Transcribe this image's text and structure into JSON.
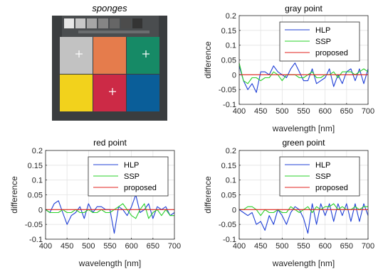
{
  "image_panel": {
    "title": "sponges",
    "colors": [
      "#c2c2c2",
      "#e57c4c",
      "#168a66",
      "#f2d21c",
      "#cc2a46",
      "#0a5e99"
    ],
    "markers": [
      0,
      4,
      2
    ]
  },
  "chart_data": [
    {
      "type": "line",
      "title": "gray point",
      "xlabel": "wavelength [nm]",
      "ylabel": "difference",
      "xlim": [
        400,
        700
      ],
      "ylim": [
        -0.1,
        0.2
      ],
      "xticks": [
        400,
        450,
        500,
        550,
        600,
        650,
        700
      ],
      "yticks": [
        -0.1,
        -0.05,
        0,
        0.05,
        0.1,
        0.15,
        0.2
      ],
      "grid": true,
      "legend": "top-right",
      "x": [
        400,
        410,
        420,
        430,
        440,
        450,
        460,
        470,
        480,
        490,
        500,
        510,
        520,
        530,
        540,
        550,
        560,
        570,
        580,
        590,
        600,
        610,
        620,
        630,
        640,
        650,
        660,
        670,
        680,
        690,
        700
      ],
      "series": [
        {
          "name": "HLP",
          "color": "#1f3fd6",
          "values": [
            0.03,
            -0.02,
            -0.05,
            -0.03,
            -0.06,
            0.01,
            0.01,
            0.0,
            0.03,
            0.01,
            0.0,
            -0.01,
            0.02,
            0.04,
            0.01,
            -0.02,
            -0.02,
            0.02,
            -0.03,
            -0.02,
            -0.01,
            0.02,
            -0.04,
            0.0,
            -0.03,
            0.01,
            0.02,
            -0.02,
            0.02,
            -0.03,
            0.02
          ]
        },
        {
          "name": "SSP",
          "color": "#2ad12a",
          "values": [
            0.04,
            -0.02,
            -0.03,
            -0.01,
            -0.01,
            -0.02,
            -0.01,
            -0.01,
            0.01,
            0.0,
            -0.02,
            0.0,
            0.0,
            0.0,
            -0.01,
            -0.01,
            0.0,
            0.01,
            -0.01,
            -0.01,
            0.0,
            0.0,
            0.01,
            -0.01,
            0.01,
            0.01,
            0.01,
            0.0,
            0.01,
            0.02,
            0.01
          ]
        },
        {
          "name": "proposed",
          "color": "#e0221c",
          "values": [
            0.0,
            0.0,
            0.0,
            0.0,
            0.0,
            0.0,
            0.0,
            0.0,
            0.0,
            0.0,
            0.0,
            0.0,
            0.0,
            0.0,
            0.0,
            0.0,
            0.0,
            0.0,
            0.0,
            0.0,
            0.0,
            0.0,
            0.0,
            0.0,
            0.0,
            0.0,
            0.0,
            0.0,
            0.0,
            0.0,
            0.0
          ]
        }
      ]
    },
    {
      "type": "line",
      "title": "red point",
      "xlabel": "wavelength [nm]",
      "ylabel": "difference",
      "xlim": [
        400,
        700
      ],
      "ylim": [
        -0.1,
        0.2
      ],
      "xticks": [
        400,
        450,
        500,
        550,
        600,
        650,
        700
      ],
      "yticks": [
        -0.1,
        -0.05,
        0,
        0.05,
        0.1,
        0.15,
        0.2
      ],
      "grid": true,
      "legend": "top-right",
      "x": [
        400,
        410,
        420,
        430,
        440,
        450,
        460,
        470,
        480,
        490,
        500,
        510,
        520,
        530,
        540,
        550,
        560,
        570,
        580,
        590,
        600,
        610,
        620,
        630,
        640,
        650,
        660,
        670,
        680,
        690,
        700
      ],
      "series": [
        {
          "name": "HLP",
          "color": "#1f3fd6",
          "values": [
            0.0,
            -0.01,
            0.02,
            0.03,
            -0.01,
            -0.05,
            -0.02,
            -0.01,
            0.01,
            -0.03,
            0.02,
            -0.01,
            0.01,
            0.01,
            0.0,
            0.0,
            -0.08,
            0.01,
            0.0,
            -0.02,
            0.01,
            0.05,
            -0.01,
            0.0,
            0.02,
            -0.03,
            0.01,
            0.0,
            0.01,
            -0.02,
            -0.01
          ]
        },
        {
          "name": "SSP",
          "color": "#2ad12a",
          "values": [
            0.0,
            -0.01,
            -0.01,
            -0.01,
            0.0,
            -0.01,
            -0.01,
            0.0,
            -0.01,
            -0.01,
            0.0,
            -0.01,
            -0.01,
            0.0,
            -0.01,
            -0.01,
            0.0,
            0.01,
            0.02,
            0.0,
            -0.02,
            -0.03,
            0.0,
            0.02,
            -0.03,
            -0.01,
            0.0,
            -0.02,
            0.0,
            -0.02,
            -0.02
          ]
        },
        {
          "name": "proposed",
          "color": "#e0221c",
          "values": [
            0.0,
            0.0,
            0.0,
            0.0,
            0.0,
            0.0,
            0.0,
            0.0,
            0.0,
            0.0,
            0.0,
            0.0,
            0.0,
            0.0,
            0.0,
            0.0,
            0.0,
            0.0,
            0.0,
            0.0,
            0.0,
            0.0,
            0.0,
            0.0,
            0.0,
            0.0,
            0.0,
            0.0,
            0.0,
            0.0,
            0.0
          ]
        }
      ]
    },
    {
      "type": "line",
      "title": "green point",
      "xlabel": "wavelength [nm]",
      "ylabel": "difference",
      "xlim": [
        400,
        700
      ],
      "ylim": [
        -0.1,
        0.2
      ],
      "xticks": [
        400,
        450,
        500,
        550,
        600,
        650,
        700
      ],
      "yticks": [
        -0.1,
        -0.05,
        0,
        0.05,
        0.1,
        0.15,
        0.2
      ],
      "grid": true,
      "legend": "top-right",
      "x": [
        400,
        410,
        420,
        430,
        440,
        450,
        460,
        470,
        480,
        490,
        500,
        510,
        520,
        530,
        540,
        550,
        560,
        570,
        580,
        590,
        600,
        610,
        620,
        630,
        640,
        650,
        660,
        670,
        680,
        690,
        700
      ],
      "series": [
        {
          "name": "HLP",
          "color": "#1f3fd6",
          "values": [
            0.0,
            -0.01,
            -0.02,
            -0.01,
            -0.05,
            -0.04,
            -0.07,
            -0.02,
            -0.05,
            0.0,
            -0.02,
            -0.05,
            -0.01,
            0.01,
            0.0,
            -0.03,
            -0.08,
            0.02,
            -0.05,
            0.02,
            -0.02,
            0.02,
            -0.04,
            0.02,
            -0.02,
            0.02,
            -0.04,
            0.02,
            -0.04,
            0.02,
            -0.02
          ]
        },
        {
          "name": "SSP",
          "color": "#2ad12a",
          "values": [
            0.0,
            0.0,
            0.01,
            0.01,
            0.0,
            -0.02,
            0.0,
            -0.01,
            -0.01,
            0.0,
            -0.01,
            -0.01,
            0.01,
            0.0,
            -0.01,
            0.0,
            0.01,
            -0.01,
            0.01,
            0.0,
            0.01,
            0.01,
            0.02,
            0.0,
            0.01,
            0.0,
            0.0,
            0.01,
            0.0,
            0.01,
            0.01
          ]
        },
        {
          "name": "proposed",
          "color": "#e0221c",
          "values": [
            0.0,
            0.0,
            0.0,
            0.0,
            0.0,
            0.0,
            0.0,
            0.0,
            0.0,
            0.0,
            0.0,
            0.0,
            0.0,
            0.0,
            0.0,
            0.0,
            0.0,
            0.0,
            0.0,
            0.0,
            0.0,
            0.0,
            0.0,
            0.0,
            0.0,
            0.0,
            0.0,
            0.0,
            0.0,
            0.0,
            0.0
          ]
        }
      ]
    }
  ]
}
